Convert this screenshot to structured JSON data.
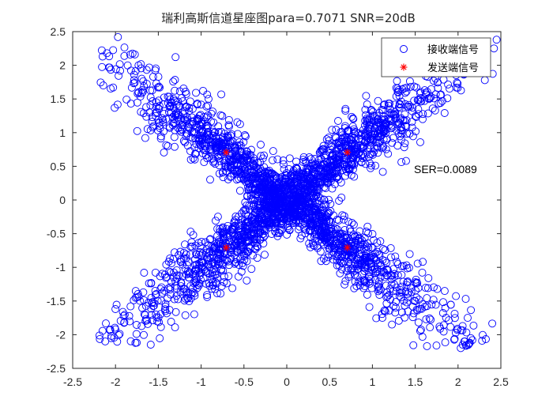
{
  "chart_data": {
    "type": "scatter",
    "title": "瑞利高斯信道星座图para=0.7071 SNR=20dB",
    "xlabel": "",
    "ylabel": "",
    "xlim": [
      -2.5,
      2.5
    ],
    "ylim": [
      -2.5,
      2.5
    ],
    "xticks": [
      -2.5,
      -2,
      -1.5,
      -1,
      -0.5,
      0,
      0.5,
      1,
      1.5,
      2,
      2.5
    ],
    "yticks": [
      -2.5,
      -2,
      -1.5,
      -1,
      -0.5,
      0,
      0.5,
      1,
      1.5,
      2,
      2.5
    ],
    "xtick_labels": [
      "-2.5",
      "-2",
      "-1.5",
      "-1",
      "-0.5",
      "0",
      "0.5",
      "1",
      "1.5",
      "2",
      "2.5"
    ],
    "ytick_labels": [
      "-2.5",
      "-2",
      "-1.5",
      "-1",
      "-0.5",
      "0",
      "0.5",
      "1",
      "1.5",
      "2",
      "2.5"
    ],
    "grid": false,
    "legend_position": "top-right",
    "annotation": "SER=0.0089",
    "series": [
      {
        "name": "接收端信号",
        "marker": "circle-open",
        "color": "#0000ff",
        "description_of_spread": "points spread along diagonal lines y=x and y=-x from about -2.15 to 2.45",
        "diagonal_range": [
          -2.15,
          2.45
        ],
        "outliers": [
          [
            -2.15,
            2.13
          ],
          [
            -2.1,
            2.18
          ],
          [
            2.45,
            2.38
          ],
          [
            2.42,
            2.25
          ],
          [
            -2.12,
            -2.1
          ],
          [
            -2.05,
            -2.05
          ],
          [
            2.12,
            -2.15
          ],
          [
            2.08,
            -2.1
          ],
          [
            -1.12,
            0.6
          ]
        ]
      },
      {
        "name": "发送端信号",
        "marker": "asterisk",
        "color": "#ff0000",
        "points": [
          [
            -0.7071,
            0.7071
          ],
          [
            0.7071,
            0.7071
          ],
          [
            -0.7071,
            -0.7071
          ],
          [
            0.7071,
            -0.7071
          ]
        ]
      }
    ]
  }
}
